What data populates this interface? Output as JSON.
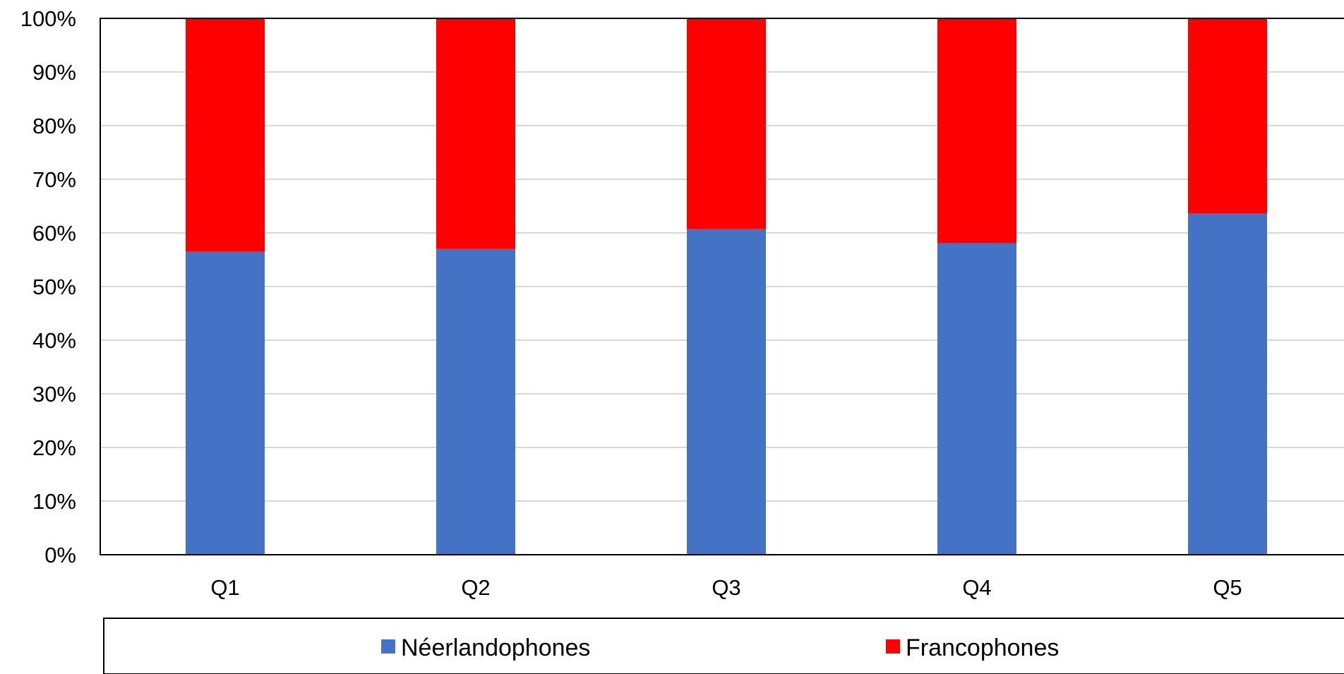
{
  "chart_data": {
    "type": "bar",
    "stacked": true,
    "normalized": true,
    "categories": [
      "Q1",
      "Q2",
      "Q3",
      "Q4",
      "Q5"
    ],
    "series": [
      {
        "name": "Néerlandophones",
        "values": [
          56.5,
          57.0,
          60.7,
          58.1,
          63.6
        ],
        "color": "#4472C4"
      },
      {
        "name": "Francophones",
        "values": [
          43.5,
          43.0,
          39.3,
          41.9,
          36.4
        ],
        "color": "#FF0000"
      }
    ],
    "yticks": [
      "0%",
      "10%",
      "20%",
      "30%",
      "40%",
      "50%",
      "60%",
      "70%",
      "80%",
      "90%",
      "100%"
    ],
    "ylim": [
      0,
      100
    ],
    "grid": true,
    "legend_position": "bottom"
  }
}
